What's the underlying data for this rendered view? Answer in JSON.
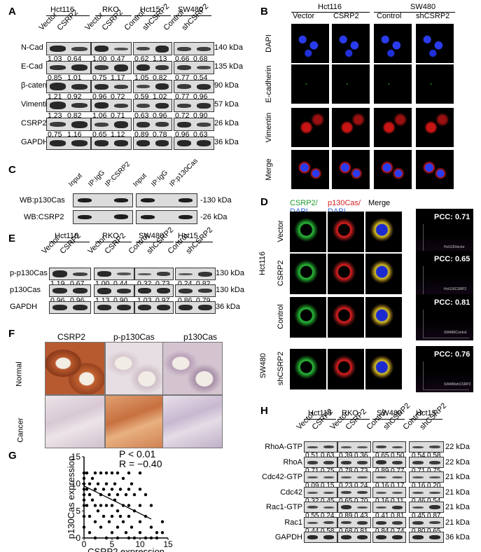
{
  "panels": {
    "A": "A",
    "B": "B",
    "C": "C",
    "D": "D",
    "E": "E",
    "F": "F",
    "G": "G",
    "H": "H"
  },
  "A": {
    "cells": [
      "Hct116",
      "RKO",
      "Hct15",
      "SW480"
    ],
    "lanes": [
      "Vector",
      "CSRP2",
      "Vector",
      "CSRP2",
      "Control",
      "shCSRP2",
      "Control",
      "shCSRP2"
    ],
    "rows": [
      {
        "name": "N-Cad",
        "kda": "140 kDa",
        "vals": [
          "1.03",
          "0.64",
          "1.00",
          "0.47",
          "0.62",
          "1.13",
          "0.66",
          "0.68"
        ]
      },
      {
        "name": "E-Cad",
        "kda": "135 kDa",
        "vals": [
          "0.85",
          "1.01",
          "0.75",
          "1.17",
          "1.05",
          "0.82",
          "0.77",
          "0.54"
        ]
      },
      {
        "name": "β-catenin",
        "kda": "90 kDa",
        "vals": [
          "1.21",
          "0.92",
          "0.96",
          "0.72",
          "0.59",
          "1.02",
          "0.77",
          "0.96"
        ]
      },
      {
        "name": "Vimentin",
        "kda": "57 kDa",
        "vals": [
          "1.23",
          "0.82",
          "1.06",
          "0.71",
          "0.63",
          "0.96",
          "0.72",
          "0.90"
        ]
      },
      {
        "name": "CSRP2",
        "kda": "26 kDa",
        "vals": [
          "0.75",
          "1.16",
          "0.65",
          "1.12",
          "0.89",
          "0.78",
          "0.96",
          "0.63"
        ]
      },
      {
        "name": "GAPDH",
        "kda": "36 kDa",
        "vals": []
      }
    ]
  },
  "B": {
    "cells": [
      "Hct116",
      "SW480"
    ],
    "cols": [
      "Vector",
      "CSRP2",
      "Control",
      "shCSRP2"
    ],
    "rows": [
      "DAPI",
      "E-cadherin",
      "Vimentin",
      "Merge"
    ]
  },
  "C": {
    "lanes": [
      "Input",
      "IP:IgG",
      "IP:CSRP2",
      "Input",
      "IP:IgG",
      "IP:p130Cas"
    ],
    "rows": [
      {
        "name": "WB:p130Cas",
        "kda": "130 kDa"
      },
      {
        "name": "WB:CSRP2",
        "kda": "26 kDa"
      }
    ]
  },
  "D": {
    "col1a": "CSRP2/",
    "col1b": "DAPI",
    "col2a": "p130Cas/",
    "col2b": "DAPI",
    "col3": "Merge",
    "cell1": "Hct116",
    "cell2": "SW480",
    "rows": [
      "Vector",
      "CSRP2",
      "Control",
      "shCSRP2"
    ],
    "pcc": [
      "PCC: 0.71",
      "PCC: 0.65",
      "PCC: 0.81",
      "PCC: 0.76"
    ],
    "tags": [
      "Hct116Vector",
      "Hct116CSRP2",
      "SW480Control",
      "SW480shCSRP2"
    ]
  },
  "E": {
    "cells": [
      "Hct116",
      "RKO",
      "SW480",
      "Hct15"
    ],
    "lanes": [
      "Vector",
      "CSRP2",
      "Vector",
      "CSRP2",
      "Control",
      "shCSRP2",
      "Control",
      "shCSRP2"
    ],
    "rows": [
      {
        "name": "p-p130Cas",
        "kda": "130 kDa",
        "vals": [
          "1.19",
          "0.67",
          "1.00",
          "0.44",
          "0.32",
          "0.73",
          "0.24",
          "0.82"
        ]
      },
      {
        "name": "p130Cas",
        "kda": "130 kDa",
        "vals": [
          "0.96",
          "0.96",
          "1.13",
          "0.90",
          "1.03",
          "0.97",
          "0.86",
          "0.79"
        ]
      },
      {
        "name": "GAPDH",
        "kda": "36 kDa",
        "vals": []
      }
    ]
  },
  "F": {
    "cols": [
      "CSRP2",
      "p-p130Cas",
      "p130Cas"
    ],
    "rows": [
      "Normal",
      "Cancer"
    ]
  },
  "G": {
    "p": "P < 0.01",
    "r": "R = −0.40"
  },
  "chart_data": {
    "type": "scatter",
    "xlabel": "CSRP2 expression",
    "ylabel": "p130Cas expression",
    "xlim": [
      0,
      15
    ],
    "ylim": [
      0,
      15
    ],
    "xticks": [
      "0",
      "5",
      "10",
      "15"
    ],
    "yticks": [
      "0",
      "5",
      "10",
      "15"
    ],
    "annotations": [
      "P < 0.01",
      "R = −0.40"
    ],
    "fit_line": {
      "x": [
        0,
        12
      ],
      "y": [
        9.6,
        3.5
      ]
    },
    "points": [
      [
        0,
        10
      ],
      [
        0,
        12
      ],
      [
        0,
        8
      ],
      [
        0,
        6
      ],
      [
        0,
        4
      ],
      [
        0,
        2
      ],
      [
        0,
        11
      ],
      [
        0,
        9
      ],
      [
        0,
        7
      ],
      [
        0.5,
        12
      ],
      [
        0.5,
        9
      ],
      [
        0.5,
        6
      ],
      [
        1,
        10
      ],
      [
        1,
        8
      ],
      [
        1,
        4
      ],
      [
        1,
        1
      ],
      [
        1.5,
        11
      ],
      [
        1.5,
        7
      ],
      [
        2,
        12
      ],
      [
        2,
        9
      ],
      [
        2,
        6
      ],
      [
        2,
        3
      ],
      [
        2,
        0
      ],
      [
        2.5,
        10
      ],
      [
        2.5,
        5
      ],
      [
        3,
        12
      ],
      [
        3,
        8
      ],
      [
        3,
        6
      ],
      [
        3,
        2
      ],
      [
        3.5,
        9
      ],
      [
        3.5,
        4
      ],
      [
        4,
        12
      ],
      [
        4,
        10
      ],
      [
        4,
        6
      ],
      [
        4,
        0
      ],
      [
        4.5,
        8
      ],
      [
        4.5,
        3
      ],
      [
        5,
        12
      ],
      [
        5,
        9
      ],
      [
        5,
        6
      ],
      [
        5,
        4
      ],
      [
        5,
        1
      ],
      [
        5.5,
        10
      ],
      [
        5.5,
        7
      ],
      [
        6,
        12
      ],
      [
        6,
        8
      ],
      [
        6,
        5
      ],
      [
        6,
        2
      ],
      [
        6,
        0
      ],
      [
        6.5,
        9
      ],
      [
        6.5,
        4
      ],
      [
        7,
        11
      ],
      [
        7,
        6
      ],
      [
        7,
        3
      ],
      [
        7.5,
        8
      ],
      [
        7.5,
        1
      ],
      [
        8,
        12
      ],
      [
        8,
        9
      ],
      [
        8,
        6
      ],
      [
        8,
        4
      ],
      [
        8,
        0
      ],
      [
        8.5,
        10
      ],
      [
        8.5,
        2
      ],
      [
        9,
        8
      ],
      [
        9,
        5
      ],
      [
        9,
        0
      ],
      [
        10,
        12
      ],
      [
        10,
        9
      ],
      [
        10,
        6
      ],
      [
        10,
        3
      ],
      [
        10,
        1
      ],
      [
        11,
        8
      ],
      [
        11,
        4
      ],
      [
        11,
        0
      ],
      [
        12,
        2
      ],
      [
        12,
        6
      ],
      [
        12,
        0
      ],
      [
        13,
        1
      ],
      [
        13,
        0
      ],
      [
        14,
        3
      ],
      [
        14,
        1
      ]
    ]
  },
  "H": {
    "cells": [
      "Hct116",
      "RKO",
      "SW480",
      "Hct15"
    ],
    "lanes": [
      "Vector",
      "CSRP2",
      "Vector",
      "CSRP2",
      "Control",
      "shCSRP2",
      "Control",
      "shCSRP2"
    ],
    "rows": [
      {
        "name": "RhoA-GTP",
        "kda": "22 kDa",
        "vals": [
          "0.51",
          "0.63",
          "0.39",
          "0.36",
          "0.65",
          "0.50",
          "0.54",
          "0.58"
        ]
      },
      {
        "name": "RhoA",
        "kda": "22 kDa",
        "vals": [
          "0.71",
          "0.75",
          "0.78",
          "0.73",
          "0.89",
          "0.77",
          "0.71",
          "0.75"
        ]
      },
      {
        "name": "Cdc42-GTP",
        "kda": "21 kDa",
        "vals": [
          "0.09",
          "0.15",
          "0.23",
          "0.24",
          "0.16",
          "0.17",
          "0.16",
          "0.20"
        ]
      },
      {
        "name": "Cdc42",
        "kda": "21 kDa",
        "vals": [
          "0.32",
          "0.45",
          "0.65",
          "0.70",
          "0.16",
          "0.11",
          "0.46",
          "0.54"
        ]
      },
      {
        "name": "Rac1-GTP",
        "kda": "21 kDa",
        "vals": [
          "0.55",
          "0.24",
          "0.89",
          "0.43",
          "0.41",
          "0.81",
          "0.45",
          "0.87"
        ]
      },
      {
        "name": "Rac1",
        "kda": "21 kDa",
        "vals": [
          "0.44",
          "0.58",
          "0.68",
          "0.81",
          "0.84",
          "0.74",
          "0.80",
          "0.65"
        ]
      },
      {
        "name": "GAPDH",
        "kda": "36 kDa",
        "vals": []
      }
    ]
  }
}
